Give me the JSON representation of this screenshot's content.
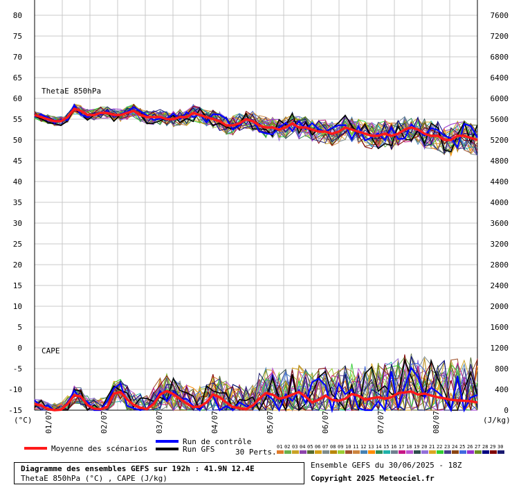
{
  "chart_data": {
    "type": "line",
    "left_axis": {
      "unit": "(°C)",
      "ticks": [
        80,
        75,
        70,
        65,
        60,
        55,
        50,
        45,
        40,
        35,
        30,
        25,
        20,
        15,
        10,
        5,
        0,
        -5,
        -10,
        -15
      ],
      "range": [
        -15,
        80
      ]
    },
    "right_axis": {
      "unit": "(J/kg)",
      "ticks": [
        7600,
        7200,
        6800,
        6400,
        6000,
        5600,
        5200,
        4800,
        4400,
        4000,
        3600,
        3200,
        2800,
        2400,
        2000,
        1600,
        1200,
        800,
        400,
        0
      ],
      "range": [
        0,
        7600
      ]
    },
    "x_ticks": [
      "01/07",
      "02/07",
      "03/07",
      "04/07",
      "05/07",
      "06/07",
      "07/07",
      "08/07"
    ],
    "x_range_hours": [
      0,
      192
    ],
    "panels": {
      "thetae_label": "ThetaE 850hPa",
      "cape_label": "CAPE"
    },
    "mean_series": {
      "thetae_c": [
        56,
        55.5,
        55,
        54.5,
        54.5,
        55.5,
        57.5,
        57,
        56,
        56,
        56.5,
        56.5,
        56,
        56,
        56.5,
        57,
        56,
        55.5,
        55.5,
        55.5,
        55,
        55,
        55.5,
        55.5,
        56.5,
        56,
        55.5,
        55,
        54.5,
        53.5,
        53.5,
        54,
        55,
        54.5,
        53.5,
        53,
        53,
        52.5,
        53,
        54,
        53,
        53,
        52.5,
        52,
        52,
        51.5,
        52,
        53,
        52.5,
        52,
        51.5,
        51,
        51,
        51.5,
        51,
        51.5,
        52.5,
        53,
        52.5,
        51.5,
        51,
        51,
        50,
        50,
        51,
        51,
        50.5,
        50
      ],
      "cape_jkg": [
        120,
        90,
        20,
        0,
        10,
        120,
        290,
        260,
        100,
        30,
        20,
        60,
        320,
        350,
        210,
        100,
        50,
        20,
        120,
        300,
        370,
        310,
        220,
        130,
        60,
        70,
        150,
        300,
        250,
        150,
        60,
        40,
        20,
        90,
        220,
        330,
        300,
        220,
        250,
        300,
        350,
        260,
        150,
        200,
        280,
        200,
        180,
        220,
        310,
        280,
        200,
        230,
        250,
        220,
        250,
        330,
        340,
        360,
        300,
        320,
        280,
        250,
        230,
        200,
        190,
        180,
        170,
        150
      ]
    },
    "legend": {
      "mean": "Moyenne des scénarios",
      "control": "Run de contrôle",
      "gfs": "Run GFS",
      "perts_label": "30 Perts.",
      "perts": [
        "01",
        "02",
        "03",
        "04",
        "05",
        "06",
        "07",
        "08",
        "09",
        "10",
        "11",
        "12",
        "13",
        "14",
        "15",
        "16",
        "17",
        "18",
        "19",
        "20",
        "21",
        "22",
        "23",
        "24",
        "25",
        "26",
        "27",
        "28",
        "29",
        "30"
      ],
      "colors": {
        "mean": "#ff1a1a",
        "control": "#0000ff",
        "gfs": "#000000",
        "perts": [
          "#e07a2a",
          "#6ab04c",
          "#c9a227",
          "#8e44ad",
          "#556b2f",
          "#d4a017",
          "#7f8c8d",
          "#b8860b",
          "#9acd32",
          "#a0522d",
          "#cd853f",
          "#4682b4",
          "#ff8c00",
          "#2e8b57",
          "#20b2aa",
          "#708090",
          "#c71585",
          "#ba55d3",
          "#2f4f4f",
          "#9370db",
          "#daa520",
          "#32cd32",
          "#483d8b",
          "#8b4513",
          "#4169e1",
          "#9932cc",
          "#6b8e23",
          "#000080",
          "#800000",
          "#191970"
        ]
      }
    }
  },
  "footer": {
    "title_line1": "Diagramme des ensembles GEFS sur 192h : 41.9N 12.4E",
    "title_line2": "ThetaE 850hPa (°C) , CAPE (J/kg)",
    "run_info": "Ensemble GEFS du 30/06/2025 - 18Z",
    "copyright": "Copyright 2025 Meteociel.fr"
  }
}
